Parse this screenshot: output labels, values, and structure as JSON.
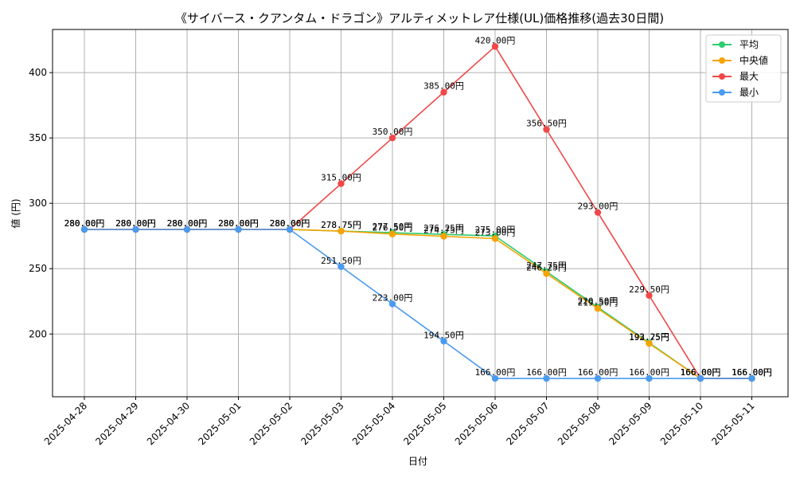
{
  "chart_data": {
    "type": "line",
    "title": "《サイバース・クアンタム・ドラゴン》アルティメットレア仕様(UL)価格推移(過去30日間)",
    "xlabel": "日付",
    "ylabel": "値 (円)",
    "ylim": [
      152,
      433
    ],
    "yticks": [
      200,
      250,
      300,
      350,
      400
    ],
    "grid": true,
    "legend_position": "top-right",
    "value_suffix": "円",
    "categories": [
      "2025-04-28",
      "2025-04-29",
      "2025-04-30",
      "2025-05-01",
      "2025-05-02",
      "2025-05-03",
      "2025-05-04",
      "2025-05-05",
      "2025-05-06",
      "2025-05-07",
      "2025-05-08",
      "2025-05-09",
      "2025-05-10",
      "2025-05-11"
    ],
    "series": [
      {
        "name": "平均",
        "color": "#2ecc71",
        "values": [
          280.0,
          280.0,
          280.0,
          280.0,
          280.0,
          278.75,
          277.5,
          276.25,
          275.0,
          247.75,
          220.5,
          193.25,
          166.0,
          166.0
        ]
      },
      {
        "name": "中央値",
        "color": "#f5a300",
        "values": [
          280.0,
          280.0,
          280.0,
          280.0,
          280.0,
          278.75,
          276.5,
          274.75,
          273.0,
          246.25,
          219.5,
          192.75,
          166.0,
          166.0
        ]
      },
      {
        "name": "最大",
        "color": "#f04848",
        "values": [
          280.0,
          280.0,
          280.0,
          280.0,
          280.0,
          315.0,
          350.0,
          385.0,
          420.0,
          356.5,
          293.0,
          229.5,
          166.0,
          166.0
        ]
      },
      {
        "name": "最小",
        "color": "#4a9af0",
        "values": [
          280.0,
          280.0,
          280.0,
          280.0,
          280.0,
          251.5,
          223.0,
          194.5,
          166.0,
          166.0,
          166.0,
          166.0,
          166.0,
          166.0
        ]
      }
    ]
  }
}
